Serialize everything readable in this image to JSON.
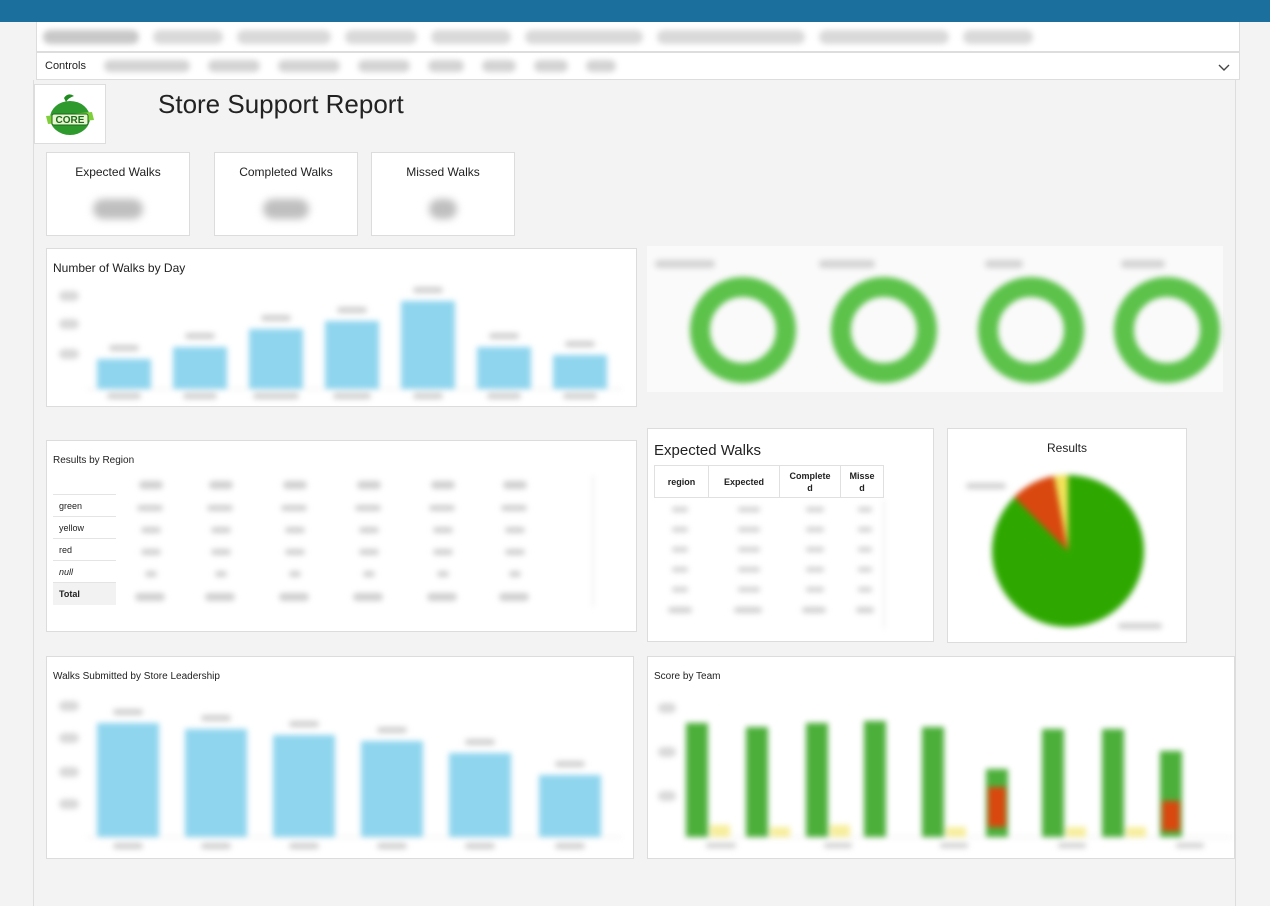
{
  "header": {
    "tabs_count": 11,
    "controls_label": "Controls"
  },
  "report": {
    "title": "Store Support Report",
    "logo_text": "CORE"
  },
  "kpis": [
    {
      "label": "Expected Walks"
    },
    {
      "label": "Completed Walks"
    },
    {
      "label": "Missed Walks"
    }
  ],
  "walks_by_day": {
    "title": "Number of Walks by Day"
  },
  "results_by_region": {
    "title": "Results by Region",
    "rows": [
      "green",
      "yellow",
      "red",
      "null",
      "Total"
    ]
  },
  "expected_walks": {
    "title": "Expected Walks",
    "columns": [
      "region",
      "Expected",
      "Complete\nd",
      "Misse\nd"
    ]
  },
  "results": {
    "title": "Results"
  },
  "store_leadership": {
    "title": "Walks Submitted by Store Leadership"
  },
  "score_by_team": {
    "title": "Score by Team"
  },
  "colors": {
    "topbar": "#1a6f9c",
    "bar_blue": "#8fd5ee",
    "green": "#4caf3a",
    "pie_green": "#2ea800",
    "red": "#d9480f",
    "yellow": "#f2e35a"
  }
}
